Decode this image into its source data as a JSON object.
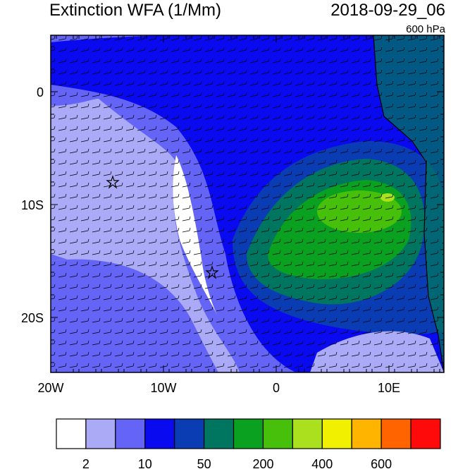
{
  "header": {
    "title": "Extinction WFA (1/Mm)",
    "timestamp": "2018-09-29_06",
    "level": "600 hPa"
  },
  "map": {
    "lat_labels": [
      "0",
      "10S",
      "20S"
    ],
    "lon_labels": [
      "20W",
      "10W",
      "0",
      "10E"
    ]
  },
  "colorbar": {
    "colors": [
      "#ffffff",
      "#aaaaf6",
      "#6464f6",
      "#0a0af0",
      "#0a3cb4",
      "#007560",
      "#0aa020",
      "#46c00a",
      "#aae01e",
      "#f0f000",
      "#ffb400",
      "#ff6400",
      "#ff0a0a"
    ],
    "labels": [
      "2",
      "10",
      "50",
      "200",
      "400",
      "600"
    ]
  }
}
